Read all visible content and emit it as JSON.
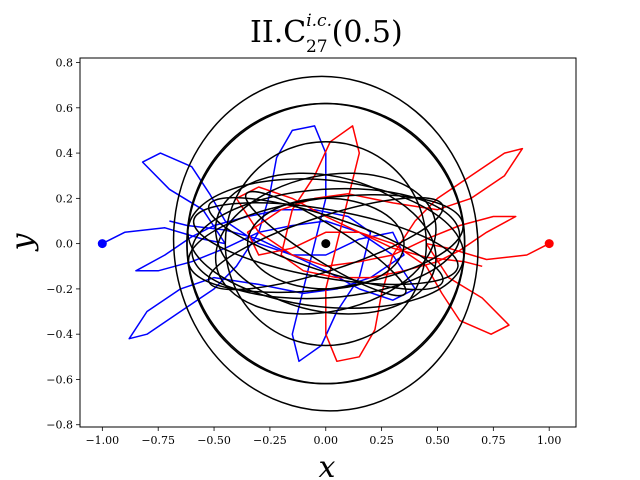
{
  "chart_data": {
    "type": "line",
    "title": {
      "main": "II.C",
      "superscript": "i.c.",
      "subscript": "27",
      "suffix": "(0.5)"
    },
    "xlabel": "x",
    "ylabel": "y",
    "xlim": [
      -1.1,
      1.12
    ],
    "ylim": [
      -0.81,
      0.82
    ],
    "xticks": [
      "−1.00",
      "−0.75",
      "−0.50",
      "−0.25",
      "0.00",
      "0.25",
      "0.50",
      "0.75",
      "1.00"
    ],
    "xtick_values": [
      -1.0,
      -0.75,
      -0.5,
      -0.25,
      0.0,
      0.25,
      0.5,
      0.75,
      1.0
    ],
    "yticks": [
      "−0.8",
      "−0.6",
      "−0.4",
      "−0.2",
      "0.0",
      "0.2",
      "0.4",
      "0.6",
      "0.8"
    ],
    "ytick_values": [
      -0.8,
      -0.6,
      -0.4,
      -0.2,
      0.0,
      0.2,
      0.4,
      0.6,
      0.8
    ],
    "grid": false,
    "legend": "none",
    "series": [
      {
        "color": "#0000ff",
        "start": [
          -1.0,
          0.0
        ],
        "points": [
          [
            -1.0,
            0.0
          ],
          [
            -0.9,
            0.05
          ],
          [
            -0.72,
            0.07
          ],
          [
            -0.55,
            0.02
          ],
          [
            -0.45,
            0.0
          ],
          [
            -0.55,
            0.15
          ],
          [
            -0.7,
            0.24
          ],
          [
            -0.82,
            0.36
          ],
          [
            -0.74,
            0.4
          ],
          [
            -0.6,
            0.34
          ],
          [
            -0.52,
            0.22
          ],
          [
            -0.45,
            0.1
          ],
          [
            -0.3,
            0.0
          ],
          [
            -0.15,
            -0.05
          ],
          [
            0.0,
            -0.05
          ],
          [
            0.15,
            0.02
          ],
          [
            0.3,
            0.05
          ],
          [
            0.35,
            -0.05
          ],
          [
            0.2,
            -0.15
          ],
          [
            0.05,
            -0.2
          ],
          [
            -0.1,
            -0.22
          ],
          [
            -0.3,
            -0.18
          ],
          [
            -0.5,
            -0.15
          ],
          [
            -0.65,
            -0.2
          ],
          [
            -0.8,
            -0.3
          ],
          [
            -0.88,
            -0.42
          ],
          [
            -0.8,
            -0.4
          ],
          [
            -0.65,
            -0.3
          ],
          [
            -0.5,
            -0.2
          ],
          [
            -0.4,
            -0.1
          ],
          [
            -0.3,
            0.05
          ],
          [
            -0.25,
            0.22
          ],
          [
            -0.22,
            0.38
          ],
          [
            -0.15,
            0.5
          ],
          [
            -0.05,
            0.52
          ],
          [
            0.0,
            0.4
          ],
          [
            0.0,
            0.2
          ],
          [
            -0.05,
            0.0
          ],
          [
            -0.1,
            -0.2
          ],
          [
            -0.15,
            -0.4
          ],
          [
            -0.12,
            -0.52
          ],
          [
            -0.02,
            -0.45
          ],
          [
            0.05,
            -0.3
          ],
          [
            0.15,
            -0.15
          ],
          [
            0.2,
            0.05
          ],
          [
            0.1,
            0.12
          ],
          [
            -0.05,
            0.15
          ],
          [
            -0.2,
            0.15
          ],
          [
            -0.35,
            0.12
          ],
          [
            -0.5,
            0.08
          ],
          [
            -0.6,
            0.03
          ],
          [
            -0.72,
            -0.05
          ],
          [
            -0.85,
            -0.12
          ],
          [
            -0.75,
            -0.12
          ],
          [
            -0.6,
            -0.08
          ],
          [
            -0.45,
            -0.02
          ],
          [
            -0.3,
            0.05
          ],
          [
            -0.15,
            0.08
          ],
          [
            0.0,
            0.1
          ],
          [
            0.15,
            0.05
          ],
          [
            0.3,
            -0.05
          ],
          [
            0.4,
            -0.2
          ],
          [
            0.3,
            -0.25
          ],
          [
            0.15,
            -0.2
          ],
          [
            0.0,
            -0.12
          ],
          [
            -0.15,
            -0.05
          ],
          [
            -0.3,
            0.02
          ],
          [
            -0.45,
            0.06
          ],
          [
            -0.62,
            0.08
          ],
          [
            -0.7,
            0.1
          ]
        ]
      },
      {
        "color": "#ff0000",
        "start": [
          1.0,
          0.0
        ],
        "points": [
          [
            1.0,
            0.0
          ],
          [
            0.9,
            -0.05
          ],
          [
            0.72,
            -0.07
          ],
          [
            0.55,
            -0.02
          ],
          [
            0.45,
            0.0
          ],
          [
            0.55,
            -0.15
          ],
          [
            0.7,
            -0.24
          ],
          [
            0.82,
            -0.36
          ],
          [
            0.74,
            -0.4
          ],
          [
            0.6,
            -0.34
          ],
          [
            0.52,
            -0.22
          ],
          [
            0.45,
            -0.1
          ],
          [
            0.3,
            0.0
          ],
          [
            0.15,
            0.05
          ],
          [
            0.0,
            0.05
          ],
          [
            -0.15,
            -0.02
          ],
          [
            -0.3,
            -0.05
          ],
          [
            -0.35,
            0.05
          ],
          [
            -0.2,
            0.15
          ],
          [
            -0.05,
            0.2
          ],
          [
            0.1,
            0.22
          ],
          [
            0.3,
            0.18
          ],
          [
            0.5,
            0.15
          ],
          [
            0.65,
            0.2
          ],
          [
            0.8,
            0.3
          ],
          [
            0.88,
            0.42
          ],
          [
            0.8,
            0.4
          ],
          [
            0.65,
            0.3
          ],
          [
            0.5,
            0.2
          ],
          [
            0.4,
            0.1
          ],
          [
            0.3,
            -0.05
          ],
          [
            0.25,
            -0.22
          ],
          [
            0.22,
            -0.38
          ],
          [
            0.15,
            -0.5
          ],
          [
            0.05,
            -0.52
          ],
          [
            0.0,
            -0.4
          ],
          [
            0.0,
            -0.2
          ],
          [
            0.05,
            0.0
          ],
          [
            0.1,
            0.2
          ],
          [
            0.15,
            0.4
          ],
          [
            0.12,
            0.52
          ],
          [
            0.02,
            0.45
          ],
          [
            -0.05,
            0.3
          ],
          [
            -0.15,
            0.15
          ],
          [
            -0.2,
            -0.05
          ],
          [
            -0.1,
            -0.12
          ],
          [
            0.05,
            -0.15
          ],
          [
            0.2,
            -0.15
          ],
          [
            0.35,
            -0.12
          ],
          [
            0.5,
            -0.08
          ],
          [
            0.6,
            -0.03
          ],
          [
            0.72,
            0.05
          ],
          [
            0.85,
            0.12
          ],
          [
            0.75,
            0.12
          ],
          [
            0.6,
            0.08
          ],
          [
            0.45,
            0.02
          ],
          [
            0.3,
            -0.05
          ],
          [
            0.15,
            -0.08
          ],
          [
            0.0,
            -0.1
          ],
          [
            -0.15,
            -0.05
          ],
          [
            -0.3,
            0.05
          ],
          [
            -0.4,
            0.2
          ],
          [
            -0.3,
            0.25
          ],
          [
            -0.15,
            0.2
          ],
          [
            0.0,
            0.12
          ],
          [
            0.15,
            0.05
          ],
          [
            0.3,
            -0.02
          ],
          [
            0.45,
            -0.06
          ],
          [
            0.62,
            -0.08
          ],
          [
            0.7,
            -0.1
          ]
        ]
      },
      {
        "color": "#000000",
        "start": [
          0.0,
          0.0
        ],
        "ellipses": [
          {
            "cx": 0.0,
            "cy": 0.0,
            "rx": 0.68,
            "ry": 0.74,
            "rot": -8
          },
          {
            "cx": 0.0,
            "cy": 0.0,
            "rx": 0.62,
            "ry": 0.62,
            "rot": -25
          },
          {
            "cx": 0.0,
            "cy": 0.0,
            "rx": 0.62,
            "ry": 0.62,
            "rot": 25
          },
          {
            "cx": 0.0,
            "cy": 0.0,
            "rx": 0.62,
            "ry": 0.28,
            "rot": 6
          },
          {
            "cx": 0.0,
            "cy": 0.0,
            "rx": 0.62,
            "ry": 0.2,
            "rot": -8
          },
          {
            "cx": 0.0,
            "cy": 0.0,
            "rx": 0.6,
            "ry": 0.15,
            "rot": 10
          },
          {
            "cx": 0.0,
            "cy": 0.0,
            "rx": 0.6,
            "ry": 0.24,
            "rot": -4
          },
          {
            "cx": 0.0,
            "cy": 0.0,
            "rx": 0.55,
            "ry": 0.12,
            "rot": 18
          },
          {
            "cx": 0.0,
            "cy": 0.0,
            "rx": 0.55,
            "ry": 0.12,
            "rot": -18
          },
          {
            "cx": 0.0,
            "cy": 0.0,
            "rx": 0.5,
            "ry": 0.3,
            "rot": 12
          },
          {
            "cx": 0.0,
            "cy": 0.0,
            "rx": 0.5,
            "ry": 0.3,
            "rot": -12
          },
          {
            "cx": 0.0,
            "cy": 0.0,
            "rx": 0.45,
            "ry": 0.45,
            "rot": 0
          },
          {
            "cx": 0.0,
            "cy": 0.0,
            "rx": 0.42,
            "ry": 0.08,
            "rot": 32
          },
          {
            "cx": 0.0,
            "cy": 0.0,
            "rx": 0.35,
            "ry": 0.2,
            "rot": 0
          }
        ]
      }
    ],
    "markers": [
      {
        "x": -1.0,
        "y": 0.0,
        "color": "#0000ff"
      },
      {
        "x": 0.0,
        "y": 0.0,
        "color": "#000000"
      },
      {
        "x": 1.0,
        "y": 0.0,
        "color": "#ff0000"
      }
    ]
  }
}
